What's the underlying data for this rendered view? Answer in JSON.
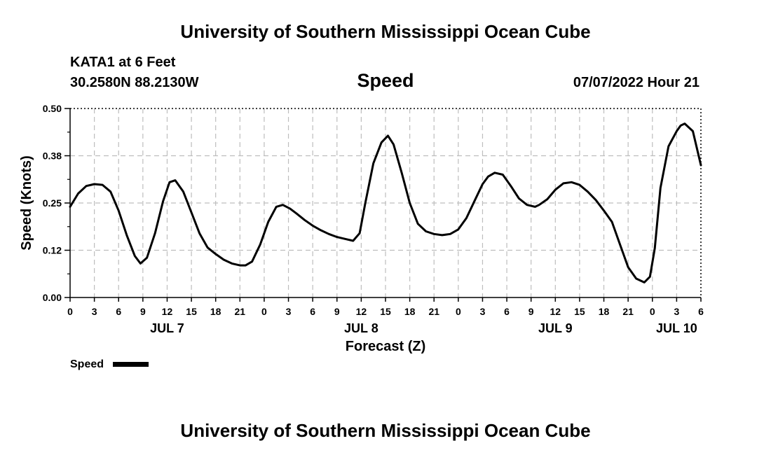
{
  "page": {
    "title_top": "University of Southern Mississippi Ocean Cube",
    "title_bottom": "University of Southern Mississippi Ocean Cube",
    "station": "KATA1 at 6 Feet",
    "location": "30.2580N  88.2130W",
    "datetime": "07/07/2022 Hour 21"
  },
  "chart_data": {
    "type": "line",
    "title": "Speed",
    "xlabel": "Forecast (Z)",
    "ylabel": "Speed (Knots)",
    "x_unit": "hours from JUL 7 00Z",
    "xlim": [
      0,
      78
    ],
    "ylim": [
      0,
      0.5
    ],
    "y_ticks": [
      "0.00",
      "0.12",
      "0.25",
      "0.38",
      "0.50"
    ],
    "x_tick_labels": [
      "0",
      "3",
      "6",
      "9",
      "12",
      "15",
      "18",
      "21",
      "0",
      "3",
      "6",
      "9",
      "12",
      "15",
      "18",
      "21",
      "0",
      "3",
      "6",
      "9",
      "12",
      "15",
      "18",
      "21",
      "0",
      "3",
      "6"
    ],
    "day_labels": [
      {
        "label": "JUL 7",
        "hour": 12
      },
      {
        "label": "JUL 8",
        "hour": 36
      },
      {
        "label": "JUL 9",
        "hour": 60
      },
      {
        "label": "JUL 10",
        "hour": 75
      }
    ],
    "grid": true,
    "legend_position": "bottom-left",
    "series": [
      {
        "name": "Speed",
        "color": "#000000",
        "x": [
          0,
          1,
          2,
          3,
          4,
          5,
          6,
          7,
          8,
          8.7,
          9.5,
          10.5,
          11.5,
          12.3,
          13,
          14,
          15,
          16,
          17,
          18,
          19,
          20,
          21,
          21.7,
          22.5,
          23.5,
          24.5,
          25.5,
          26.3,
          27.2,
          28,
          29,
          30,
          31,
          32,
          33,
          34,
          35,
          35.8,
          36.5,
          37.5,
          38.5,
          39.3,
          40,
          41,
          42,
          43,
          44,
          45,
          46,
          47,
          48,
          49,
          50,
          51,
          51.7,
          52.5,
          53.5,
          54.5,
          55.5,
          56.5,
          57.5,
          58,
          59,
          60,
          61,
          62,
          63,
          64,
          65,
          66,
          67,
          68,
          69,
          70,
          71,
          71.7,
          72.3,
          73,
          74,
          75,
          75.5,
          76,
          77,
          78
        ],
        "y": [
          0.24,
          0.275,
          0.295,
          0.3,
          0.298,
          0.28,
          0.23,
          0.165,
          0.11,
          0.09,
          0.105,
          0.17,
          0.255,
          0.305,
          0.31,
          0.28,
          0.225,
          0.17,
          0.132,
          0.115,
          0.1,
          0.09,
          0.085,
          0.085,
          0.095,
          0.14,
          0.2,
          0.24,
          0.245,
          0.235,
          0.222,
          0.205,
          0.19,
          0.178,
          0.168,
          0.16,
          0.155,
          0.15,
          0.17,
          0.25,
          0.355,
          0.41,
          0.428,
          0.405,
          0.33,
          0.25,
          0.195,
          0.175,
          0.168,
          0.165,
          0.168,
          0.18,
          0.21,
          0.255,
          0.3,
          0.32,
          0.33,
          0.325,
          0.295,
          0.262,
          0.245,
          0.24,
          0.245,
          0.26,
          0.285,
          0.302,
          0.305,
          0.298,
          0.28,
          0.258,
          0.23,
          0.2,
          0.14,
          0.08,
          0.05,
          0.04,
          0.055,
          0.13,
          0.29,
          0.4,
          0.44,
          0.455,
          0.46,
          0.44,
          0.35
        ]
      }
    ]
  }
}
